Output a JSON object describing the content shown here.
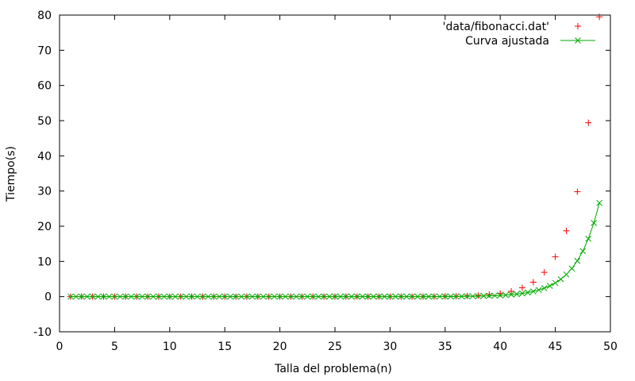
{
  "chart_data": {
    "type": "scatter",
    "title": "",
    "xlabel": "Talla del problema(n)",
    "ylabel": "Tiempo(s)",
    "xlim": [
      0,
      50
    ],
    "ylim": [
      -10,
      80
    ],
    "xticks": [
      0,
      5,
      10,
      15,
      20,
      25,
      30,
      35,
      40,
      45,
      50
    ],
    "yticks": [
      -10,
      0,
      10,
      20,
      30,
      40,
      50,
      60,
      70,
      80
    ],
    "grid": false,
    "legend_position": "top-right",
    "series": [
      {
        "name": "'data/fibonacci.dat'",
        "style": "points",
        "marker": "plus",
        "color": "#ff0000",
        "x": [
          1,
          2,
          3,
          4,
          5,
          6,
          7,
          8,
          9,
          10,
          11,
          12,
          13,
          14,
          15,
          16,
          17,
          18,
          19,
          20,
          21,
          22,
          23,
          24,
          25,
          26,
          27,
          28,
          29,
          30,
          31,
          32,
          33,
          34,
          35,
          36,
          37,
          38,
          39,
          40,
          41,
          42,
          43,
          44,
          45,
          46,
          47,
          48,
          49
        ],
        "y": [
          0,
          0,
          0,
          0,
          0,
          0,
          0,
          0,
          0,
          0,
          0,
          0,
          0,
          0,
          0,
          0,
          0,
          0,
          0,
          0,
          0,
          0,
          0,
          0,
          0,
          0,
          0,
          0,
          0,
          0,
          0,
          0,
          0,
          0,
          0.1,
          0.1,
          0.2,
          0.3,
          0.6,
          0.9,
          1.5,
          2.5,
          4.1,
          6.9,
          11.3,
          18.7,
          29.8,
          49.4,
          79.5
        ]
      },
      {
        "name": "Curva ajustada",
        "style": "linespoints",
        "marker": "cross",
        "color": "#00aa00",
        "x_start": 1,
        "x_end": 49,
        "sample_step": 0.5,
        "model": {
          "form": "a*phi^n",
          "a": 1.53e-09,
          "phi": 1.618034
        }
      }
    ]
  }
}
